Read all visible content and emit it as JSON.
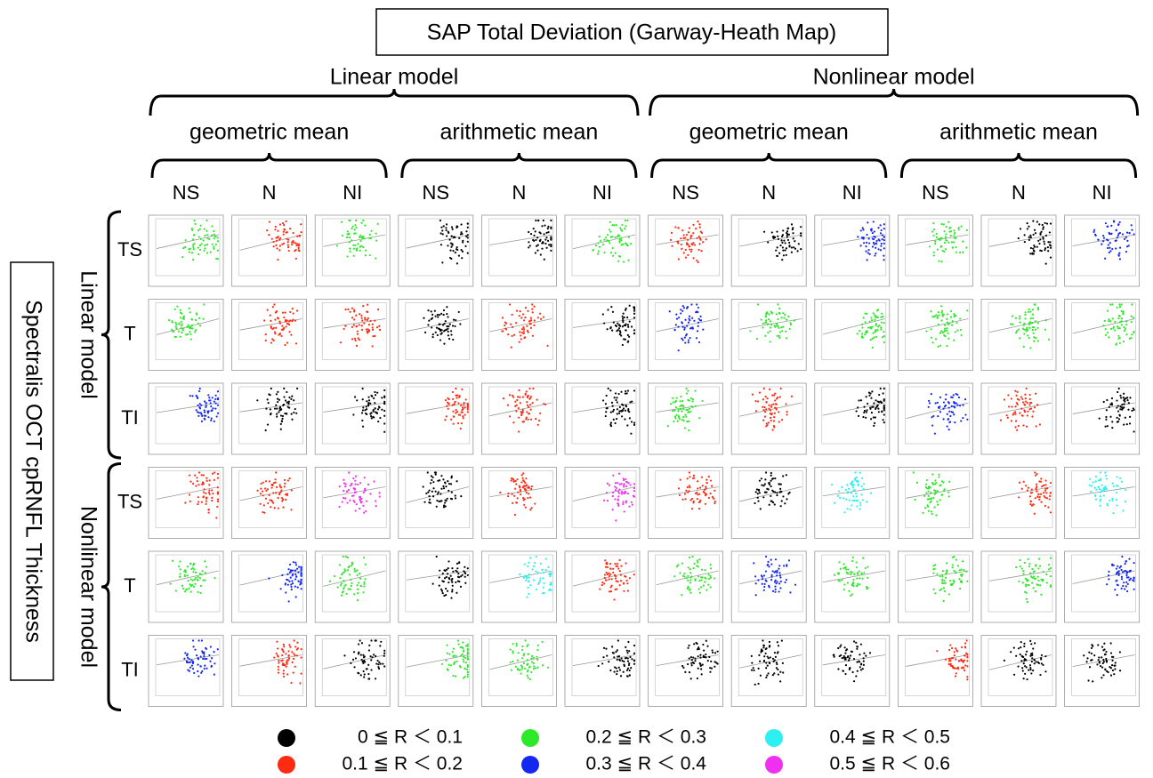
{
  "title": "SAP Total Deviation (Garway-Heath Map)",
  "row_axis_label": "Spectralis OCT cpRNFL Thickness",
  "column_groups": [
    {
      "label": "Linear model",
      "subgroups": [
        {
          "label": "geometric mean",
          "columns": [
            "NS",
            "N",
            "NI"
          ]
        },
        {
          "label": "arithmetic mean",
          "columns": [
            "NS",
            "N",
            "NI"
          ]
        }
      ]
    },
    {
      "label": "Nonlinear model",
      "subgroups": [
        {
          "label": "geometric mean",
          "columns": [
            "NS",
            "N",
            "NI"
          ]
        },
        {
          "label": "arithmetic mean",
          "columns": [
            "NS",
            "N",
            "NI"
          ]
        }
      ]
    }
  ],
  "row_groups": [
    {
      "label": "Linear model",
      "rows": [
        "TS",
        "T",
        "TI"
      ]
    },
    {
      "label": "Nonlinear model",
      "rows": [
        "TS",
        "T",
        "TI"
      ]
    }
  ],
  "legend": [
    {
      "label": "0 ≦ R ＜ 0.1",
      "color": "#000000"
    },
    {
      "label": "0.1 ≦ R ＜ 0.2",
      "color": "#ff2a12"
    },
    {
      "label": "0.2 ≦ R ＜ 0.3",
      "color": "#2ee82a"
    },
    {
      "label": "0.3 ≦ R ＜ 0.4",
      "color": "#1428f0"
    },
    {
      "label": "0.4 ≦ R ＜ 0.5",
      "color": "#2ef0f0"
    },
    {
      "label": "0.5 ≦ R ＜ 0.6",
      "color": "#f030f0"
    }
  ],
  "grid": [
    [
      2,
      1,
      2,
      0,
      0,
      2,
      1,
      0,
      3,
      2,
      0,
      3
    ],
    [
      2,
      1,
      1,
      0,
      1,
      0,
      3,
      2,
      2,
      2,
      2,
      2
    ],
    [
      3,
      0,
      0,
      1,
      1,
      0,
      2,
      1,
      0,
      3,
      1,
      0
    ],
    [
      1,
      1,
      5,
      0,
      1,
      5,
      1,
      0,
      4,
      2,
      1,
      4
    ],
    [
      2,
      3,
      2,
      0,
      4,
      1,
      2,
      3,
      2,
      2,
      2,
      3
    ],
    [
      3,
      1,
      0,
      2,
      2,
      0,
      0,
      0,
      0,
      1,
      0,
      0
    ]
  ]
}
